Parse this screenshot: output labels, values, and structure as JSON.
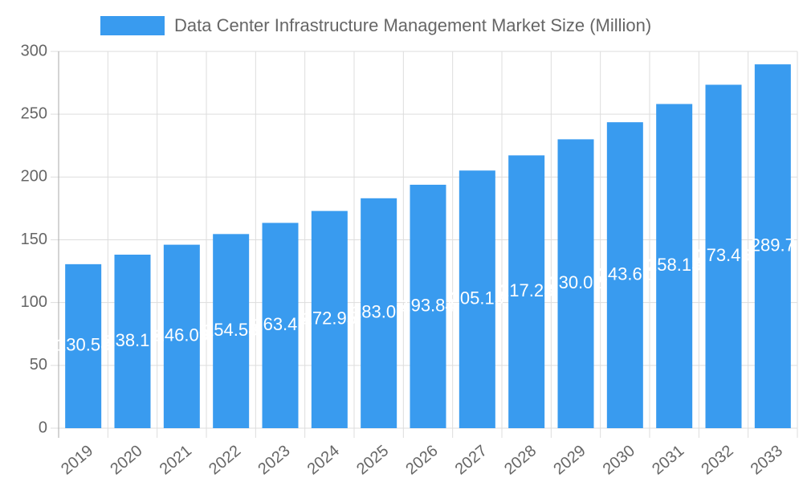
{
  "chart_data": {
    "type": "bar",
    "categories": [
      "2019",
      "2020",
      "2021",
      "2022",
      "2023",
      "2024",
      "2025",
      "2026",
      "2027",
      "2028",
      "2029",
      "2030",
      "2031",
      "2032",
      "2033"
    ],
    "series": [
      {
        "name": "Data Center Infrastructure Management Market Size (Million)",
        "color": "#399bef",
        "values": [
          130.58,
          138.17,
          146.09,
          154.58,
          163.47,
          172.95,
          183.07,
          193.84,
          205.15,
          217.23,
          230.02,
          243.61,
          258.13,
          273.46,
          289.7
        ]
      }
    ],
    "ylim": [
      0,
      300
    ],
    "yticks": [
      0,
      50,
      100,
      150,
      200,
      250,
      300
    ],
    "grid": true,
    "legend": "top"
  }
}
